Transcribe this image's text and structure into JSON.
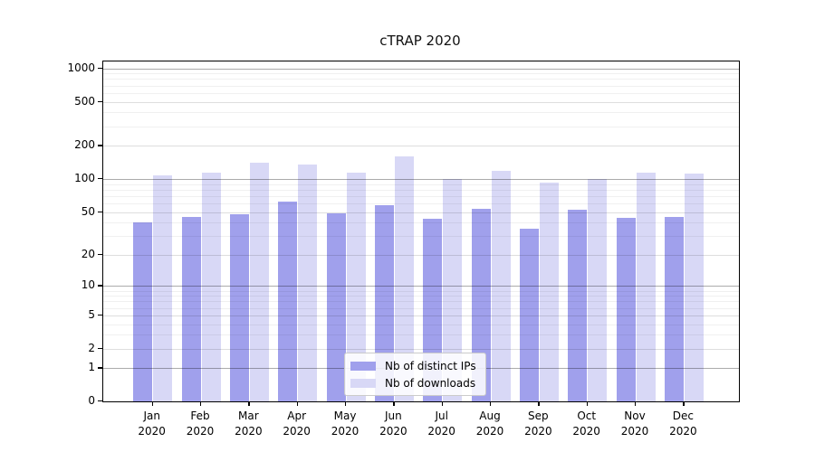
{
  "title": "cTRAP 2020",
  "colors": {
    "ips_bar": "#a0a0ec",
    "downloads_bar": "#d8d8f6",
    "axis_line": "#000000",
    "grid_major": "#aaaaaa",
    "grid_minor": "#ececec"
  },
  "legend": {
    "items": [
      {
        "label": "Nb of distinct IPs",
        "series": "ips"
      },
      {
        "label": "Nb of downloads",
        "series": "downloads"
      }
    ]
  },
  "y_axis": {
    "tick_labels": [
      "1000",
      "500",
      "200",
      "100",
      "50",
      "20",
      "10",
      "5",
      "2",
      "1",
      "0"
    ]
  },
  "x_axis": {
    "year": "2020",
    "months": [
      "Jan",
      "Feb",
      "Mar",
      "Apr",
      "May",
      "Jun",
      "Jul",
      "Aug",
      "Sep",
      "Oct",
      "Nov",
      "Dec"
    ]
  },
  "chart_data": {
    "type": "bar",
    "title": "cTRAP 2020",
    "categories": [
      "Jan 2020",
      "Feb 2020",
      "Mar 2020",
      "Apr 2020",
      "May 2020",
      "Jun 2020",
      "Jul 2020",
      "Aug 2020",
      "Sep 2020",
      "Oct 2020",
      "Nov 2020",
      "Dec 2020"
    ],
    "series": [
      {
        "name": "Nb of distinct IPs",
        "color": "#a0a0ec",
        "values": [
          40,
          45,
          48,
          62,
          49,
          58,
          43,
          54,
          35,
          53,
          44,
          45
        ]
      },
      {
        "name": "Nb of downloads",
        "color": "#d8d8f6",
        "values": [
          108,
          115,
          141,
          135,
          115,
          160,
          101,
          118,
          92,
          100,
          115,
          112
        ]
      }
    ],
    "xlabel": "",
    "ylabel": "",
    "y_scale": "symlog (log1p)",
    "y_ticks": [
      0,
      1,
      2,
      5,
      10,
      20,
      50,
      100,
      200,
      500,
      1000
    ],
    "ylim": [
      0,
      1150
    ],
    "grid": true,
    "legend_position": "inside bottom-center"
  }
}
